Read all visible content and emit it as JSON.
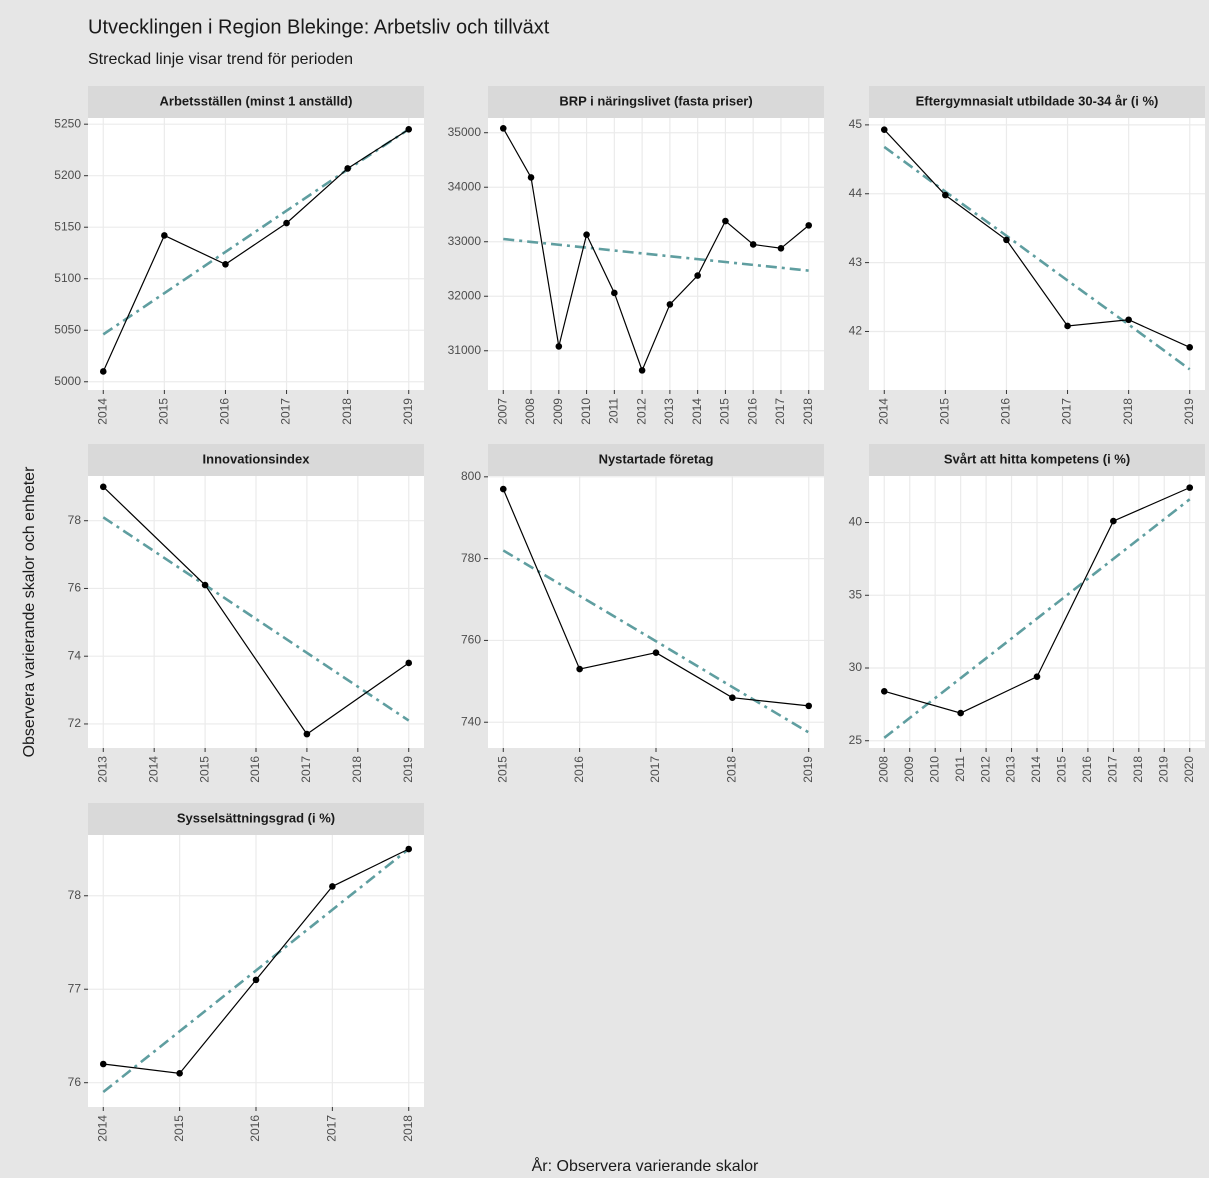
{
  "title": "Utvecklingen i Region Blekinge: Arbetsliv och tillväxt",
  "subtitle": "Streckad linje visar trend för perioden",
  "ylabel": "Observera varierande skalor och enheter",
  "xlabel": "År: Observera varierande skalor",
  "chart_data": [
    {
      "type": "line",
      "title": "Arbetsställen (minst 1 anställd)",
      "x": [
        2014,
        2015,
        2016,
        2017,
        2018,
        2019
      ],
      "series": [
        {
          "color": "#000000",
          "values": [
            5010,
            5142,
            5114,
            5154,
            5207,
            5245
          ]
        },
        {
          "color": "#5f9ea0",
          "dashed": true,
          "values": [
            5046,
            5086,
            5126,
            5166,
            5206,
            5245
          ]
        }
      ],
      "xlim": [
        2013.75,
        2019.25
      ],
      "xticks": [
        2014,
        2015,
        2016,
        2017,
        2018,
        2019
      ],
      "ylim": [
        4992,
        5256
      ],
      "yticks": [
        5000,
        5050,
        5100,
        5150,
        5200,
        5250
      ],
      "grid": true
    },
    {
      "type": "line",
      "title": "BRP i näringslivet (fasta priser)",
      "x": [
        2007,
        2008,
        2009,
        2010,
        2011,
        2012,
        2013,
        2014,
        2015,
        2016,
        2017,
        2018
      ],
      "series": [
        {
          "color": "#000000",
          "values": [
            35080,
            34180,
            31080,
            33130,
            32060,
            30640,
            31850,
            32380,
            33380,
            32950,
            32880,
            33300
          ]
        },
        {
          "color": "#5f9ea0",
          "dashed": true,
          "values": [
            33050,
            32997,
            32945,
            32892,
            32839,
            32786,
            32734,
            32681,
            32628,
            32575,
            32523,
            32470
          ]
        }
      ],
      "xlim": [
        2006.45,
        2018.55
      ],
      "xticks": [
        2007,
        2008,
        2009,
        2010,
        2011,
        2012,
        2013,
        2014,
        2015,
        2016,
        2017,
        2018
      ],
      "ylim": [
        30280,
        35270
      ],
      "yticks": [
        31000,
        32000,
        33000,
        34000,
        35000
      ],
      "grid": true
    },
    {
      "type": "line",
      "title": "Eftergymnasialt utbildade 30-34 år (i %)",
      "x": [
        2014,
        2015,
        2016,
        2017,
        2018,
        2019
      ],
      "series": [
        {
          "color": "#000000",
          "values": [
            44.93,
            43.98,
            43.33,
            42.08,
            42.17,
            41.77
          ]
        },
        {
          "color": "#5f9ea0",
          "dashed": true,
          "values": [
            44.68,
            44.03,
            43.39,
            42.74,
            42.1,
            41.45
          ]
        }
      ],
      "xlim": [
        2013.75,
        2019.25
      ],
      "xticks": [
        2014,
        2015,
        2016,
        2017,
        2018,
        2019
      ],
      "ylim": [
        41.15,
        45.1
      ],
      "yticks": [
        42,
        43,
        44,
        45
      ],
      "grid": true
    },
    {
      "type": "line",
      "title": "Innovationsindex",
      "x": [
        2013,
        2015,
        2017,
        2019
      ],
      "series": [
        {
          "color": "#000000",
          "values": [
            79.0,
            76.1,
            71.7,
            73.8
          ]
        },
        {
          "color": "#5f9ea0",
          "dashed": true,
          "values": [
            78.1,
            76.1,
            74.1,
            72.1
          ]
        }
      ],
      "xlim": [
        2012.7,
        2019.3
      ],
      "xticks": [
        2013,
        2014,
        2015,
        2016,
        2017,
        2018,
        2019
      ],
      "ylim": [
        71.29,
        79.32
      ],
      "yticks": [
        72,
        74,
        76,
        78
      ],
      "grid": true
    },
    {
      "type": "line",
      "title": "Nystartade företag",
      "x": [
        2015,
        2016,
        2017,
        2018,
        2019
      ],
      "series": [
        {
          "color": "#000000",
          "values": [
            797,
            753,
            757,
            746,
            744
          ]
        },
        {
          "color": "#5f9ea0",
          "dashed": true,
          "values": [
            782,
            770.9,
            759.8,
            748.6,
            737.5
          ]
        }
      ],
      "xlim": [
        2014.8,
        2019.2
      ],
      "xticks": [
        2015,
        2016,
        2017,
        2018,
        2019
      ],
      "ylim": [
        733.7,
        800.2
      ],
      "yticks": [
        740,
        760,
        780,
        800
      ],
      "grid": true
    },
    {
      "type": "line",
      "title": "Svårt att hitta kompetens (i %)",
      "x": [
        2008,
        2011,
        2014,
        2017,
        2020
      ],
      "series": [
        {
          "color": "#000000",
          "values": [
            28.4,
            26.9,
            29.4,
            40.1,
            42.4
          ]
        },
        {
          "color": "#5f9ea0",
          "dashed": true,
          "values": [
            25.2,
            29.3,
            33.4,
            37.5,
            41.6
          ]
        }
      ],
      "xlim": [
        2007.4,
        2020.6
      ],
      "xticks": [
        2008,
        2009,
        2010,
        2011,
        2012,
        2013,
        2014,
        2015,
        2016,
        2017,
        2018,
        2019,
        2020
      ],
      "ylim": [
        24.5,
        43.2
      ],
      "yticks": [
        25,
        30,
        35,
        40
      ],
      "grid": true
    },
    {
      "type": "line",
      "title": "Sysselsättningsgrad (i %)",
      "x": [
        2014,
        2015,
        2016,
        2017,
        2018
      ],
      "series": [
        {
          "color": "#000000",
          "values": [
            76.2,
            76.1,
            77.1,
            78.1,
            78.5
          ]
        },
        {
          "color": "#5f9ea0",
          "dashed": true,
          "values": [
            75.9,
            76.55,
            77.2,
            77.85,
            78.5
          ]
        }
      ],
      "xlim": [
        2013.8,
        2018.2
      ],
      "xticks": [
        2014,
        2015,
        2016,
        2017,
        2018
      ],
      "ylim": [
        75.74,
        78.65
      ],
      "yticks": [
        76,
        77,
        78
      ],
      "grid": true
    }
  ]
}
